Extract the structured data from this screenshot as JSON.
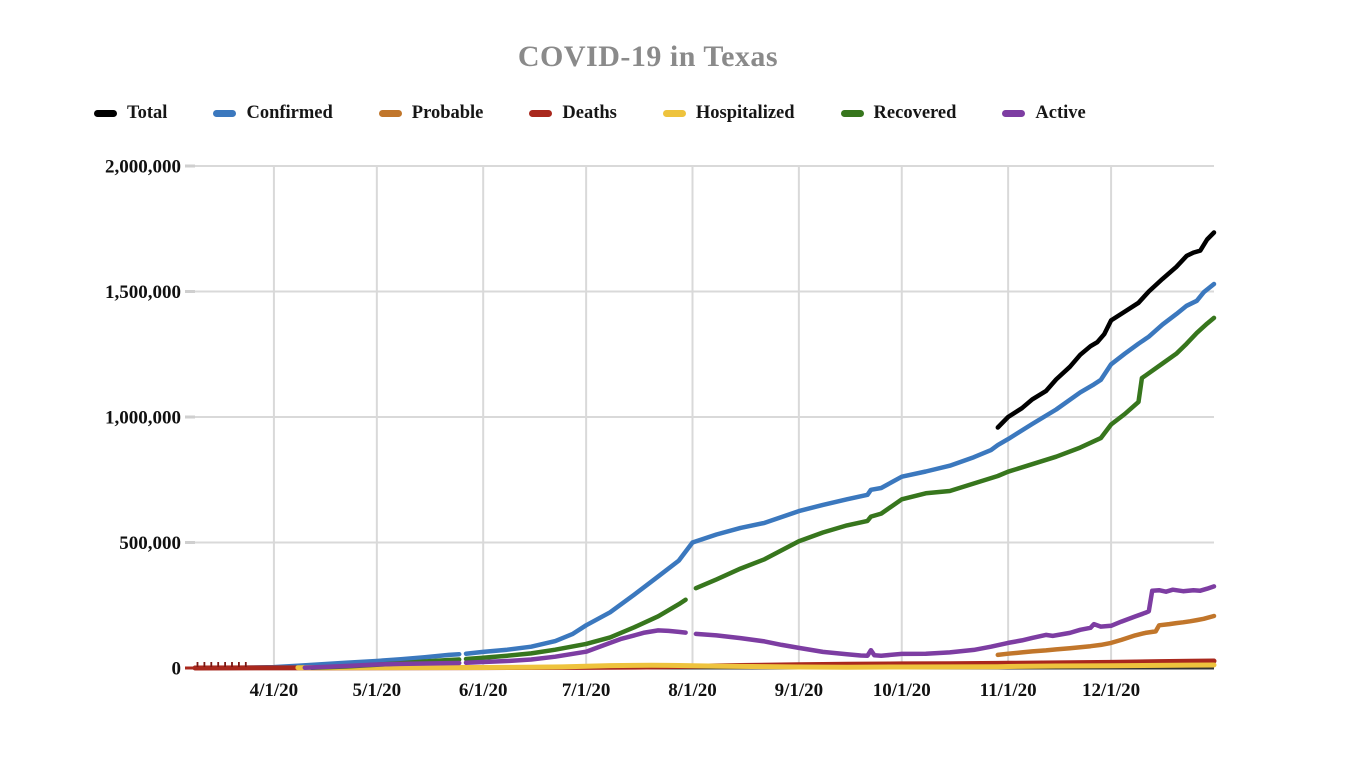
{
  "chart_data": {
    "type": "line",
    "title": "COVID-19 in Texas",
    "legend_position": "top",
    "grid": true,
    "background": "#ffffff",
    "gridline_color": "#d9d9d9",
    "axis_line_color": "#333333",
    "title_color": "#8a8a8a",
    "x_axis": {
      "unit": "date",
      "start": "3/9/20",
      "end": "12/31/20",
      "ticks": [
        {
          "label": "4/1/20",
          "day": 23
        },
        {
          "label": "5/1/20",
          "day": 53
        },
        {
          "label": "6/1/20",
          "day": 84
        },
        {
          "label": "7/1/20",
          "day": 114
        },
        {
          "label": "8/1/20",
          "day": 145
        },
        {
          "label": "9/1/20",
          "day": 176
        },
        {
          "label": "10/1/20",
          "day": 206
        },
        {
          "label": "11/1/20",
          "day": 237
        },
        {
          "label": "12/1/20",
          "day": 267
        }
      ]
    },
    "y_axis": {
      "min": 0,
      "max": 2000000,
      "ticks": [
        {
          "label": "0",
          "value": 0
        },
        {
          "label": "500,000",
          "value": 500000
        },
        {
          "label": "1,000,000",
          "value": 1000000
        },
        {
          "label": "1,500,000",
          "value": 1500000
        },
        {
          "label": "2,000,000",
          "value": 2000000
        }
      ]
    },
    "series": [
      {
        "name": "Total",
        "color": "#000000",
        "points": [
          [
            234,
            958000
          ],
          [
            237,
            1000000
          ],
          [
            241,
            1035000
          ],
          [
            244,
            1070000
          ],
          [
            248,
            1103000
          ],
          [
            251,
            1150000
          ],
          [
            255,
            1200000
          ],
          [
            258,
            1248000
          ],
          [
            261,
            1282000
          ],
          [
            263,
            1298000
          ],
          [
            265,
            1330000
          ],
          [
            267,
            1385000
          ],
          [
            271,
            1420000
          ],
          [
            275,
            1455000
          ],
          [
            278,
            1500000
          ],
          [
            282,
            1550000
          ],
          [
            286,
            1598000
          ],
          [
            289,
            1642000
          ],
          [
            291,
            1655000
          ],
          [
            293,
            1663000
          ],
          [
            295,
            1707000
          ],
          [
            297,
            1735000
          ]
        ]
      },
      {
        "name": "Confirmed",
        "color": "#3b78be",
        "points": [
          [
            0,
            0
          ],
          [
            11,
            300
          ],
          [
            23,
            3500
          ],
          [
            30,
            9000
          ],
          [
            37,
            15000
          ],
          [
            44,
            21000
          ],
          [
            53,
            28000
          ],
          [
            60,
            35000
          ],
          [
            67,
            43000
          ],
          [
            74,
            52000
          ],
          [
            77,
            55000
          ],
          [
            78,
            null
          ],
          [
            79,
            57000
          ],
          [
            84,
            64000
          ],
          [
            91,
            73000
          ],
          [
            98,
            85000
          ],
          [
            105,
            107000
          ],
          [
            110,
            135000
          ],
          [
            114,
            170000
          ],
          [
            121,
            222000
          ],
          [
            128,
            292000
          ],
          [
            135,
            365000
          ],
          [
            141,
            428000
          ],
          [
            145,
            500000
          ],
          [
            152,
            532000
          ],
          [
            159,
            558000
          ],
          [
            166,
            578000
          ],
          [
            176,
            625000
          ],
          [
            183,
            650000
          ],
          [
            190,
            672000
          ],
          [
            196,
            690000
          ],
          [
            197,
            710000
          ],
          [
            200,
            717000
          ],
          [
            206,
            762000
          ],
          [
            213,
            783000
          ],
          [
            220,
            806000
          ],
          [
            227,
            840000
          ],
          [
            232,
            868000
          ],
          [
            234,
            888000
          ],
          [
            237,
            912000
          ],
          [
            244,
            972000
          ],
          [
            251,
            1030000
          ],
          [
            258,
            1098000
          ],
          [
            262,
            1130000
          ],
          [
            264,
            1148000
          ],
          [
            267,
            1210000
          ],
          [
            271,
            1252000
          ],
          [
            275,
            1292000
          ],
          [
            278,
            1320000
          ],
          [
            282,
            1368000
          ],
          [
            286,
            1410000
          ],
          [
            289,
            1443000
          ],
          [
            292,
            1463000
          ],
          [
            294,
            1497000
          ],
          [
            297,
            1530000
          ]
        ]
      },
      {
        "name": "Probable",
        "color": "#c1762b",
        "points": [
          [
            234,
            52000
          ],
          [
            237,
            57000
          ],
          [
            241,
            62000
          ],
          [
            244,
            66000
          ],
          [
            248,
            70000
          ],
          [
            251,
            74000
          ],
          [
            255,
            79000
          ],
          [
            258,
            83000
          ],
          [
            261,
            87000
          ],
          [
            264,
            92000
          ],
          [
            267,
            100000
          ],
          [
            270,
            112000
          ],
          [
            274,
            130000
          ],
          [
            277,
            140000
          ],
          [
            280,
            146000
          ],
          [
            281,
            170000
          ],
          [
            284,
            175000
          ],
          [
            286,
            179000
          ],
          [
            288,
            182000
          ],
          [
            290,
            186000
          ],
          [
            292,
            191000
          ],
          [
            294,
            196000
          ],
          [
            297,
            207000
          ]
        ]
      },
      {
        "name": "Deaths",
        "color": "#a9281d",
        "points": [
          [
            0,
            0
          ],
          [
            23,
            200
          ],
          [
            37,
            500
          ],
          [
            53,
            900
          ],
          [
            84,
            1700
          ],
          [
            114,
            2500
          ],
          [
            128,
            3400
          ],
          [
            135,
            4300
          ],
          [
            145,
            7000
          ],
          [
            159,
            10000
          ],
          [
            176,
            13000
          ],
          [
            190,
            15000
          ],
          [
            206,
            16200
          ],
          [
            220,
            17300
          ],
          [
            234,
            18300
          ],
          [
            237,
            18700
          ],
          [
            251,
            20500
          ],
          [
            267,
            22500
          ],
          [
            281,
            25500
          ],
          [
            290,
            26800
          ],
          [
            297,
            28000
          ]
        ]
      },
      {
        "name": "Hospitalized",
        "color": "#eec33d",
        "points": [
          [
            30,
            1300
          ],
          [
            53,
            1600
          ],
          [
            84,
            2000
          ],
          [
            98,
            2700
          ],
          [
            107,
            4200
          ],
          [
            114,
            6900
          ],
          [
            121,
            9600
          ],
          [
            128,
            10500
          ],
          [
            133,
            10900
          ],
          [
            138,
            10400
          ],
          [
            141,
            10000
          ],
          [
            145,
            9000
          ],
          [
            152,
            7500
          ],
          [
            159,
            6400
          ],
          [
            166,
            5500
          ],
          [
            176,
            3900
          ],
          [
            190,
            3300
          ],
          [
            206,
            3900
          ],
          [
            220,
            4300
          ],
          [
            234,
            5300
          ],
          [
            237,
            6000
          ],
          [
            251,
            7900
          ],
          [
            267,
            9000
          ],
          [
            281,
            10500
          ],
          [
            290,
            11500
          ],
          [
            297,
            12000
          ]
        ]
      },
      {
        "name": "Recovered",
        "color": "#37761d",
        "points": [
          [
            34,
            1000
          ],
          [
            44,
            6000
          ],
          [
            53,
            13000
          ],
          [
            60,
            19000
          ],
          [
            67,
            26000
          ],
          [
            74,
            32000
          ],
          [
            77,
            34000
          ],
          [
            78,
            null
          ],
          [
            79,
            36000
          ],
          [
            84,
            41000
          ],
          [
            91,
            49000
          ],
          [
            98,
            58000
          ],
          [
            105,
            73000
          ],
          [
            114,
            96000
          ],
          [
            121,
            122000
          ],
          [
            128,
            162000
          ],
          [
            135,
            206000
          ],
          [
            141,
            254000
          ],
          [
            143,
            272000
          ],
          [
            144,
            null
          ],
          [
            146,
            318000
          ],
          [
            152,
            353000
          ],
          [
            159,
            396000
          ],
          [
            166,
            433000
          ],
          [
            176,
            505000
          ],
          [
            183,
            540000
          ],
          [
            190,
            568000
          ],
          [
            196,
            586000
          ],
          [
            197,
            603000
          ],
          [
            200,
            615000
          ],
          [
            206,
            672000
          ],
          [
            213,
            696000
          ],
          [
            220,
            705000
          ],
          [
            227,
            735000
          ],
          [
            234,
            765000
          ],
          [
            237,
            782000
          ],
          [
            244,
            812000
          ],
          [
            251,
            842000
          ],
          [
            258,
            878000
          ],
          [
            264,
            916000
          ],
          [
            267,
            970000
          ],
          [
            271,
            1012000
          ],
          [
            275,
            1060000
          ],
          [
            276,
            1155000
          ],
          [
            282,
            1213000
          ],
          [
            286,
            1252000
          ],
          [
            289,
            1292000
          ],
          [
            292,
            1335000
          ],
          [
            295,
            1372000
          ],
          [
            297,
            1395000
          ]
        ]
      },
      {
        "name": "Active",
        "color": "#7d3da2",
        "points": [
          [
            32,
            1000
          ],
          [
            44,
            8000
          ],
          [
            53,
            14000
          ],
          [
            60,
            16500
          ],
          [
            67,
            18000
          ],
          [
            74,
            19500
          ],
          [
            77,
            20000
          ],
          [
            78,
            null
          ],
          [
            79,
            21000
          ],
          [
            84,
            24000
          ],
          [
            91,
            28000
          ],
          [
            98,
            34000
          ],
          [
            105,
            45000
          ],
          [
            114,
            65000
          ],
          [
            121,
            100000
          ],
          [
            124,
            115000
          ],
          [
            128,
            130000
          ],
          [
            131,
            141000
          ],
          [
            135,
            150000
          ],
          [
            138,
            148000
          ],
          [
            141,
            144000
          ],
          [
            143,
            141000
          ],
          [
            144,
            null
          ],
          [
            146,
            136000
          ],
          [
            152,
            130000
          ],
          [
            159,
            119000
          ],
          [
            166,
            106000
          ],
          [
            171,
            92000
          ],
          [
            176,
            80000
          ],
          [
            183,
            64000
          ],
          [
            190,
            55000
          ],
          [
            194,
            50000
          ],
          [
            196,
            49000
          ],
          [
            197,
            71000
          ],
          [
            198,
            51000
          ],
          [
            200,
            49000
          ],
          [
            206,
            56000
          ],
          [
            213,
            57000
          ],
          [
            220,
            62000
          ],
          [
            227,
            72000
          ],
          [
            232,
            85000
          ],
          [
            237,
            100000
          ],
          [
            241,
            110000
          ],
          [
            244,
            120000
          ],
          [
            248,
            132000
          ],
          [
            250,
            128000
          ],
          [
            255,
            140000
          ],
          [
            258,
            152000
          ],
          [
            261,
            160000
          ],
          [
            262,
            175000
          ],
          [
            264,
            165000
          ],
          [
            267,
            168000
          ],
          [
            270,
            185000
          ],
          [
            274,
            205000
          ],
          [
            277,
            220000
          ],
          [
            278,
            226000
          ],
          [
            279,
            308000
          ],
          [
            281,
            310000
          ],
          [
            283,
            304000
          ],
          [
            285,
            312000
          ],
          [
            288,
            306000
          ],
          [
            291,
            310000
          ],
          [
            293,
            308000
          ],
          [
            295,
            316000
          ],
          [
            297,
            325000
          ]
        ]
      }
    ]
  }
}
